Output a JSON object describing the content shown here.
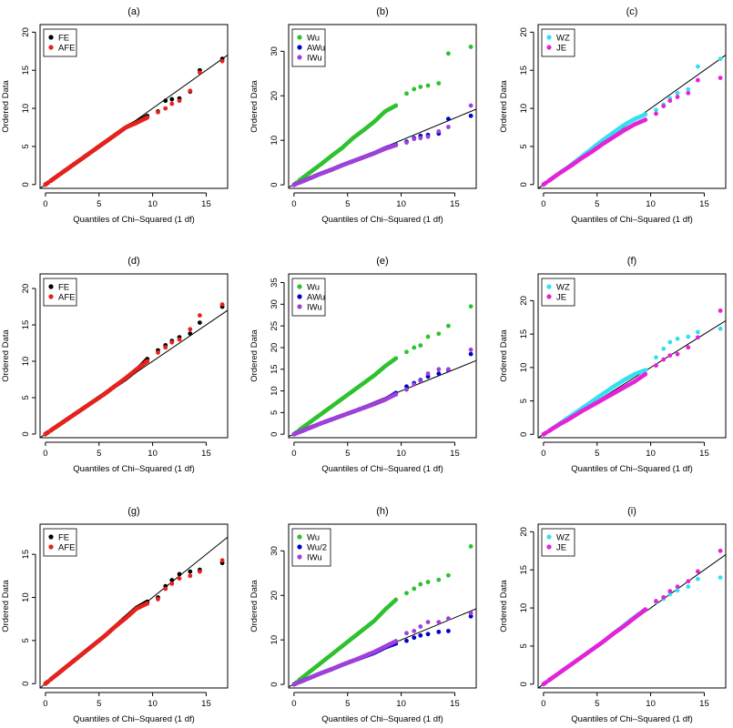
{
  "chart_data": [
    {
      "type": "scatter",
      "title": "(a)",
      "xlabel": "Quantiles of Chi–Squared (1 df)",
      "ylabel": "Ordered Data",
      "xlim": [
        -0.5,
        17
      ],
      "ylim": [
        -0.5,
        21
      ],
      "xticks": [
        0,
        5,
        10,
        15
      ],
      "yticks": [
        0,
        5,
        10,
        15,
        20
      ],
      "legend": "top-left",
      "reference_line": "y = x",
      "series": [
        {
          "name": "FE",
          "color": "#000000",
          "x": [
            0.5,
            1.5,
            2.5,
            3.5,
            4.5,
            5.5,
            6.5,
            7.5,
            8.5,
            9.5,
            10.5,
            11.2,
            11.8,
            12.5,
            13.5,
            14.4,
            16.5
          ],
          "y": [
            0.5,
            1.5,
            2.5,
            3.5,
            4.5,
            5.5,
            6.5,
            7.5,
            8.2,
            9.0,
            9.6,
            11.0,
            11.2,
            11.3,
            12.2,
            15.0,
            16.5
          ]
        },
        {
          "name": "AFE",
          "color": "#e8211c",
          "x": [
            0.5,
            1.5,
            2.5,
            3.5,
            4.5,
            5.5,
            6.5,
            7.5,
            8.5,
            9.5,
            10.5,
            11.2,
            11.8,
            12.5,
            13.5,
            14.4,
            16.5
          ],
          "y": [
            0.5,
            1.5,
            2.5,
            3.5,
            4.5,
            5.5,
            6.5,
            7.5,
            8.1,
            8.8,
            9.5,
            10.0,
            10.6,
            11.0,
            12.3,
            14.7,
            16.2
          ]
        }
      ]
    },
    {
      "type": "scatter",
      "title": "(b)",
      "xlabel": "Quantiles of Chi–Squared (1 df)",
      "ylabel": "Ordered Data",
      "xlim": [
        -0.5,
        17
      ],
      "ylim": [
        -0.8,
        36
      ],
      "xticks": [
        0,
        5,
        10,
        15
      ],
      "yticks": [
        0,
        10,
        20,
        30
      ],
      "legend": "top-left",
      "reference_line": "y = x",
      "series": [
        {
          "name": "Wu",
          "color": "#2ec12e",
          "x": [
            0.5,
            1.5,
            2.5,
            3.5,
            4.5,
            5.5,
            6.5,
            7.5,
            8.5,
            9.5,
            10.5,
            11.2,
            11.8,
            12.5,
            13.5,
            14.4,
            16.5
          ],
          "y": [
            1.0,
            2.8,
            4.6,
            6.5,
            8.3,
            10.5,
            12.3,
            14.2,
            16.5,
            17.8,
            20.5,
            21.5,
            22.0,
            22.3,
            22.8,
            29.5,
            31.0
          ]
        },
        {
          "name": "AWu",
          "color": "#0000cd",
          "x": [
            0.5,
            1.5,
            2.5,
            3.5,
            4.5,
            5.5,
            6.5,
            7.5,
            8.5,
            9.5,
            10.5,
            11.2,
            11.8,
            12.5,
            13.5,
            14.4,
            16.5
          ],
          "y": [
            0.5,
            1.5,
            2.5,
            3.4,
            4.4,
            5.3,
            6.2,
            7.1,
            8.2,
            9.0,
            9.7,
            10.5,
            11.0,
            11.2,
            11.5,
            14.8,
            15.5
          ]
        },
        {
          "name": "IWu",
          "color": "#a040d8",
          "x": [
            0.5,
            1.5,
            2.5,
            3.5,
            4.5,
            5.5,
            6.5,
            7.5,
            8.5,
            9.5,
            10.5,
            11.2,
            11.8,
            12.5,
            13.5,
            14.4,
            16.5
          ],
          "y": [
            0.5,
            1.5,
            2.5,
            3.4,
            4.4,
            5.3,
            6.2,
            7.1,
            8.1,
            8.9,
            9.5,
            10.3,
            10.5,
            10.8,
            12.0,
            13.0,
            17.8
          ]
        }
      ]
    },
    {
      "type": "scatter",
      "title": "(c)",
      "xlabel": "Quantiles of Chi–Squared (1 df)",
      "ylabel": "Ordered Data",
      "xlim": [
        -0.5,
        17
      ],
      "ylim": [
        -0.5,
        21
      ],
      "xticks": [
        0,
        5,
        10,
        15
      ],
      "yticks": [
        0,
        5,
        10,
        15,
        20
      ],
      "legend": "top-left",
      "reference_line": "y = x",
      "series": [
        {
          "name": "WZ",
          "color": "#33e0f0",
          "x": [
            0.5,
            1.5,
            2.5,
            3.5,
            4.5,
            5.5,
            6.5,
            7.5,
            8.5,
            9.5,
            10.5,
            11.2,
            11.8,
            12.5,
            13.5,
            14.4,
            16.5
          ],
          "y": [
            0.5,
            1.5,
            2.5,
            3.6,
            4.7,
            5.8,
            6.8,
            7.8,
            8.6,
            9.2,
            9.8,
            10.5,
            11.3,
            12.0,
            12.5,
            15.5,
            16.5
          ]
        },
        {
          "name": "JE",
          "color": "#e622d8",
          "x": [
            0.5,
            1.5,
            2.5,
            3.5,
            4.5,
            5.5,
            6.5,
            7.5,
            8.5,
            9.5,
            10.5,
            11.2,
            11.8,
            12.5,
            13.5,
            14.4,
            16.5
          ],
          "y": [
            0.5,
            1.5,
            2.4,
            3.4,
            4.3,
            5.3,
            6.2,
            7.1,
            7.9,
            8.5,
            9.3,
            10.3,
            11.0,
            11.5,
            12.0,
            13.7,
            14.0
          ]
        }
      ]
    },
    {
      "type": "scatter",
      "title": "(d)",
      "xlabel": "Quantiles of Chi–Squared (1 df)",
      "ylabel": "Ordered Data",
      "xlim": [
        -0.5,
        17
      ],
      "ylim": [
        -0.5,
        22
      ],
      "xticks": [
        0,
        5,
        10,
        15
      ],
      "yticks": [
        0,
        5,
        10,
        15,
        20
      ],
      "legend": "top-left",
      "reference_line": "y = x",
      "series": [
        {
          "name": "FE",
          "color": "#000000",
          "x": [
            0.5,
            1.5,
            2.5,
            3.5,
            4.5,
            5.5,
            6.5,
            7.5,
            8.5,
            9.5,
            10.5,
            11.2,
            11.8,
            12.5,
            13.5,
            14.4,
            16.5
          ],
          "y": [
            0.5,
            1.5,
            2.5,
            3.5,
            4.5,
            5.5,
            6.6,
            7.6,
            8.8,
            10.3,
            11.5,
            12.2,
            12.8,
            13.3,
            13.8,
            15.3,
            17.5
          ]
        },
        {
          "name": "AFE",
          "color": "#e8211c",
          "x": [
            0.5,
            1.5,
            2.5,
            3.5,
            4.5,
            5.5,
            6.5,
            7.5,
            8.5,
            9.5,
            10.5,
            11.2,
            11.8,
            12.5,
            13.5,
            14.4,
            16.5
          ],
          "y": [
            0.5,
            1.5,
            2.5,
            3.5,
            4.5,
            5.5,
            6.6,
            7.7,
            8.9,
            10.0,
            11.2,
            11.9,
            12.6,
            13.0,
            14.4,
            16.3,
            17.8
          ]
        }
      ]
    },
    {
      "type": "scatter",
      "title": "(e)",
      "xlabel": "Quantiles of Chi–Squared (1 df)",
      "ylabel": "Ordered Data",
      "xlim": [
        -0.5,
        17
      ],
      "ylim": [
        -0.8,
        37
      ],
      "xticks": [
        0,
        5,
        10,
        15
      ],
      "yticks": [
        0,
        5,
        10,
        15,
        20,
        25,
        30,
        35
      ],
      "legend": "top-left",
      "reference_line": "y = x",
      "series": [
        {
          "name": "Wu",
          "color": "#2ec12e",
          "x": [
            0.5,
            1.5,
            2.5,
            3.5,
            4.5,
            5.5,
            6.5,
            7.5,
            8.5,
            9.5,
            10.5,
            11.2,
            11.8,
            12.5,
            13.5,
            14.4,
            16.5
          ],
          "y": [
            1.0,
            2.8,
            4.6,
            6.4,
            8.2,
            10.0,
            11.8,
            13.6,
            15.7,
            17.5,
            19.0,
            20.0,
            20.5,
            22.5,
            23.2,
            25.0,
            29.5
          ]
        },
        {
          "name": "AWu",
          "color": "#0000cd",
          "x": [
            0.5,
            1.5,
            2.5,
            3.5,
            4.5,
            5.5,
            6.5,
            7.5,
            8.5,
            9.5,
            10.5,
            11.2,
            11.8,
            12.5,
            13.5,
            14.4,
            16.5
          ],
          "y": [
            0.5,
            1.5,
            2.5,
            3.4,
            4.3,
            5.2,
            6.1,
            7.0,
            8.0,
            9.5,
            11.0,
            11.8,
            12.5,
            13.3,
            14.0,
            14.8,
            18.5
          ]
        },
        {
          "name": "IWu",
          "color": "#a040d8",
          "x": [
            0.5,
            1.5,
            2.5,
            3.5,
            4.5,
            5.5,
            6.5,
            7.5,
            8.5,
            9.5,
            10.5,
            11.2,
            11.8,
            12.5,
            13.5,
            14.4,
            16.5
          ],
          "y": [
            0.5,
            1.5,
            2.5,
            3.4,
            4.3,
            5.2,
            6.1,
            7.0,
            8.0,
            9.2,
            10.3,
            11.5,
            12.3,
            14.0,
            15.0,
            15.0,
            19.5
          ]
        }
      ]
    },
    {
      "type": "scatter",
      "title": "(f)",
      "xlabel": "Quantiles of Chi–Squared (1 df)",
      "ylabel": "Ordered Data",
      "xlim": [
        -0.5,
        17
      ],
      "ylim": [
        -0.5,
        24
      ],
      "xticks": [
        0,
        5,
        10,
        15
      ],
      "yticks": [
        0,
        5,
        10,
        15,
        20
      ],
      "legend": "top-left",
      "reference_line": "y = x",
      "series": [
        {
          "name": "WZ",
          "color": "#33e0f0",
          "x": [
            0.5,
            1.5,
            2.5,
            3.5,
            4.5,
            5.5,
            6.5,
            7.5,
            8.5,
            9.5,
            10.5,
            11.2,
            11.8,
            12.5,
            13.5,
            14.4,
            16.5
          ],
          "y": [
            0.5,
            1.6,
            2.7,
            3.8,
            4.9,
            6.0,
            7.1,
            8.1,
            9.0,
            9.6,
            11.5,
            12.8,
            13.8,
            14.3,
            14.6,
            15.3,
            15.8
          ]
        },
        {
          "name": "JE",
          "color": "#e622d8",
          "x": [
            0.5,
            1.5,
            2.5,
            3.5,
            4.5,
            5.5,
            6.5,
            7.5,
            8.5,
            9.5,
            10.5,
            11.2,
            11.8,
            12.5,
            13.5,
            14.4,
            16.5
          ],
          "y": [
            0.5,
            1.5,
            2.4,
            3.4,
            4.3,
            5.2,
            6.1,
            7.0,
            7.9,
            9.0,
            10.3,
            11.2,
            11.8,
            12.0,
            13.0,
            14.5,
            18.5
          ]
        }
      ]
    },
    {
      "type": "scatter",
      "title": "(g)",
      "xlabel": "Quantiles of Chi–Squared (1 df)",
      "ylabel": "Ordered Data",
      "xlim": [
        -0.5,
        17
      ],
      "ylim": [
        -0.5,
        18.5
      ],
      "xticks": [
        0,
        5,
        10,
        15
      ],
      "yticks": [
        0,
        5,
        10,
        15
      ],
      "legend": "top-left",
      "reference_line": "y = x",
      "series": [
        {
          "name": "FE",
          "color": "#000000",
          "x": [
            0.5,
            1.5,
            2.5,
            3.5,
            4.5,
            5.5,
            6.5,
            7.5,
            8.5,
            9.5,
            10.5,
            11.2,
            11.8,
            12.5,
            13.5,
            14.4,
            16.5
          ],
          "y": [
            0.5,
            1.5,
            2.5,
            3.5,
            4.5,
            5.5,
            6.6,
            7.7,
            8.8,
            9.5,
            10.0,
            11.3,
            12.0,
            12.7,
            13.0,
            13.2,
            14.0
          ]
        },
        {
          "name": "AFE",
          "color": "#e8211c",
          "x": [
            0.5,
            1.5,
            2.5,
            3.5,
            4.5,
            5.5,
            6.5,
            7.5,
            8.5,
            9.5,
            10.5,
            11.2,
            11.8,
            12.5,
            13.5,
            14.4,
            16.5
          ],
          "y": [
            0.5,
            1.5,
            2.5,
            3.5,
            4.5,
            5.5,
            6.6,
            7.6,
            8.7,
            9.3,
            9.8,
            11.0,
            11.6,
            12.2,
            12.5,
            13.0,
            14.3
          ]
        }
      ]
    },
    {
      "type": "scatter",
      "title": "(h)",
      "xlabel": "Quantiles of Chi–Squared (1 df)",
      "ylabel": "Ordered Data",
      "xlim": [
        -0.5,
        17
      ],
      "ylim": [
        -0.8,
        36
      ],
      "xticks": [
        0,
        5,
        10,
        15
      ],
      "yticks": [
        0,
        10,
        20,
        30
      ],
      "legend": "top-left",
      "reference_line": "y = x",
      "series": [
        {
          "name": "Wu",
          "color": "#2ec12e",
          "x": [
            0.5,
            1.5,
            2.5,
            3.5,
            4.5,
            5.5,
            6.5,
            7.5,
            8.5,
            9.5,
            10.5,
            11.2,
            11.8,
            12.5,
            13.5,
            14.4,
            16.5
          ],
          "y": [
            1.0,
            2.9,
            4.8,
            6.7,
            8.6,
            10.5,
            12.4,
            14.3,
            16.8,
            19.0,
            20.5,
            21.5,
            22.5,
            23.0,
            23.5,
            24.5,
            31.0
          ]
        },
        {
          "name": "Wu/2",
          "color": "#0000cd",
          "x": [
            0.5,
            1.5,
            2.5,
            3.5,
            4.5,
            5.5,
            6.5,
            7.5,
            8.5,
            9.5,
            10.5,
            11.2,
            11.8,
            12.5,
            13.5,
            14.4,
            16.5
          ],
          "y": [
            0.5,
            1.5,
            2.5,
            3.4,
            4.4,
            5.3,
            6.2,
            7.1,
            8.3,
            9.2,
            9.8,
            10.5,
            11.0,
            11.3,
            11.8,
            12.0,
            15.3
          ]
        },
        {
          "name": "IWu",
          "color": "#a040d8",
          "x": [
            0.5,
            1.5,
            2.5,
            3.5,
            4.5,
            5.5,
            6.5,
            7.5,
            8.5,
            9.5,
            10.5,
            11.2,
            11.8,
            12.5,
            13.5,
            14.4,
            16.5
          ],
          "y": [
            0.5,
            1.5,
            2.5,
            3.4,
            4.4,
            5.3,
            6.3,
            7.3,
            8.5,
            9.7,
            11.5,
            12.0,
            13.0,
            14.0,
            14.0,
            14.8,
            16.0
          ]
        }
      ]
    },
    {
      "type": "scatter",
      "title": "(i)",
      "xlabel": "Quantiles of Chi–Squared (1 df)",
      "ylabel": "Ordered Data",
      "xlim": [
        -0.5,
        17
      ],
      "ylim": [
        -0.5,
        21
      ],
      "xticks": [
        0,
        5,
        10,
        15
      ],
      "yticks": [
        0,
        5,
        10,
        15,
        20
      ],
      "legend": "top-left",
      "reference_line": "y = x",
      "series": [
        {
          "name": "WZ",
          "color": "#33e0f0",
          "x": [
            0.5,
            1.5,
            2.5,
            3.5,
            4.5,
            5.5,
            6.5,
            7.5,
            8.5,
            9.5,
            10.5,
            11.2,
            11.8,
            12.5,
            13.5,
            14.4,
            16.5
          ],
          "y": [
            0.5,
            1.5,
            2.5,
            3.5,
            4.5,
            5.5,
            6.6,
            7.7,
            8.8,
            9.8,
            10.8,
            11.2,
            11.8,
            12.3,
            12.8,
            13.8,
            14.0
          ]
        },
        {
          "name": "JE",
          "color": "#e622d8",
          "x": [
            0.5,
            1.5,
            2.5,
            3.5,
            4.5,
            5.5,
            6.5,
            7.5,
            8.5,
            9.5,
            10.5,
            11.2,
            11.8,
            12.5,
            13.5,
            14.4,
            16.5
          ],
          "y": [
            0.5,
            1.5,
            2.5,
            3.5,
            4.5,
            5.5,
            6.6,
            7.6,
            8.7,
            9.8,
            10.9,
            11.4,
            12.2,
            12.8,
            13.5,
            14.8,
            17.5
          ]
        }
      ]
    }
  ]
}
